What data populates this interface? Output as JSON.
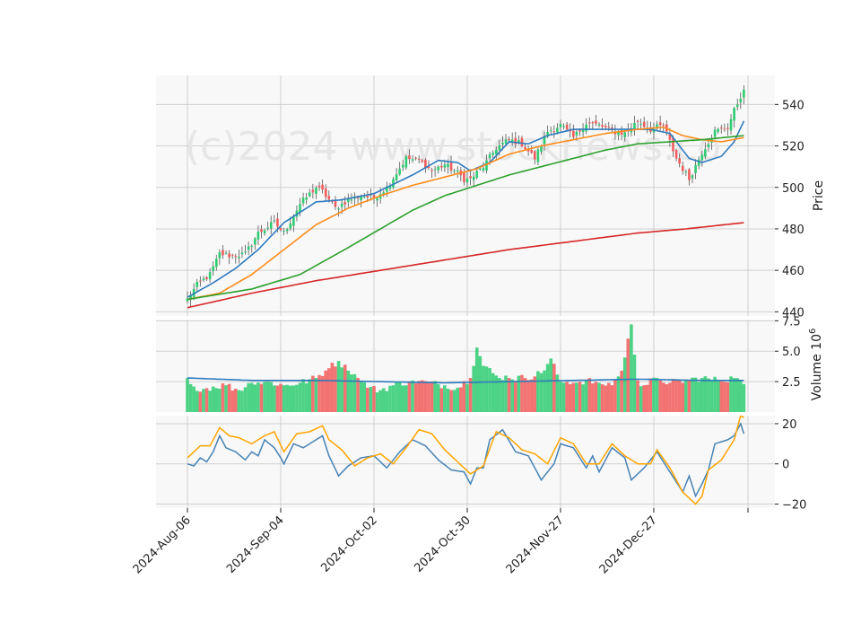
{
  "watermark": "(c)2024 www.stocknews.co",
  "colors": {
    "up": "#2ecc71",
    "down": "#f25c5c",
    "grid": "#d0d0d0",
    "panel_bg": "#f8f8f8",
    "ma_fast": "#2e7bbf",
    "ma_med": "#ff8c1a",
    "ma_slow": "#2ca02c",
    "ma_long": "#d62728",
    "vol_ma": "#2e7bbf",
    "osc_fast": "#4682b4",
    "osc_slow": "#ffa500"
  },
  "chart_data": [
    {
      "type": "candlestick",
      "panel": "price",
      "ylabel": "Price",
      "ylim": [
        438,
        554
      ],
      "yticks": [
        440,
        460,
        480,
        500,
        520,
        540
      ],
      "x_ticks": [
        "2024-Aug-06",
        "2024-Sep-04",
        "2024-Oct-02",
        "2024-Oct-30",
        "2024-Nov-27",
        "2024-Dec-27"
      ],
      "x_tick_index": [
        0,
        29,
        58,
        87,
        116,
        145
      ],
      "n_bars": 174,
      "grid": true,
      "price_anchors": [
        [
          0,
          446
        ],
        [
          3,
          453
        ],
        [
          7,
          458
        ],
        [
          10,
          468
        ],
        [
          14,
          467
        ],
        [
          18,
          468
        ],
        [
          22,
          478
        ],
        [
          27,
          483
        ],
        [
          30,
          478
        ],
        [
          35,
          492
        ],
        [
          40,
          500
        ],
        [
          42,
          498
        ],
        [
          46,
          490
        ],
        [
          50,
          494
        ],
        [
          54,
          496
        ],
        [
          58,
          495
        ],
        [
          62,
          500
        ],
        [
          68,
          514
        ],
        [
          72,
          513
        ],
        [
          76,
          508
        ],
        [
          80,
          511
        ],
        [
          84,
          507
        ],
        [
          86,
          504
        ],
        [
          88,
          504
        ],
        [
          92,
          510
        ],
        [
          96,
          519
        ],
        [
          100,
          523
        ],
        [
          104,
          521
        ],
        [
          108,
          514
        ],
        [
          112,
          527
        ],
        [
          116,
          530
        ],
        [
          120,
          524
        ],
        [
          124,
          531
        ],
        [
          128,
          530
        ],
        [
          132,
          527
        ],
        [
          136,
          526
        ],
        [
          140,
          532
        ],
        [
          144,
          528
        ],
        [
          148,
          530
        ],
        [
          152,
          514
        ],
        [
          156,
          504
        ],
        [
          160,
          517
        ],
        [
          164,
          527
        ],
        [
          168,
          529
        ],
        [
          170,
          537
        ],
        [
          172,
          544
        ],
        [
          173,
          546
        ]
      ],
      "ma_series": [
        {
          "name": "ma_fast",
          "anchors": [
            [
              0,
              447
            ],
            [
              8,
              454
            ],
            [
              15,
              461
            ],
            [
              22,
              470
            ],
            [
              30,
              483
            ],
            [
              40,
              493
            ],
            [
              48,
              494
            ],
            [
              58,
              497
            ],
            [
              70,
              506
            ],
            [
              78,
              513
            ],
            [
              84,
              512
            ],
            [
              88,
              508
            ],
            [
              94,
              512
            ],
            [
              100,
              522
            ],
            [
              106,
              521
            ],
            [
              112,
              525
            ],
            [
              120,
              528
            ],
            [
              128,
              528
            ],
            [
              136,
              528
            ],
            [
              144,
              528
            ],
            [
              150,
              526
            ],
            [
              156,
              514
            ],
            [
              160,
              512
            ],
            [
              166,
              515
            ],
            [
              170,
              522
            ],
            [
              173,
              532
            ]
          ]
        },
        {
          "name": "ma_med",
          "anchors": [
            [
              0,
              446
            ],
            [
              10,
              449
            ],
            [
              20,
              458
            ],
            [
              30,
              470
            ],
            [
              40,
              482
            ],
            [
              50,
              490
            ],
            [
              60,
              496
            ],
            [
              70,
              501
            ],
            [
              80,
              505
            ],
            [
              90,
              509
            ],
            [
              100,
              516
            ],
            [
              110,
              520
            ],
            [
              120,
              523
            ],
            [
              130,
              526
            ],
            [
              140,
              528
            ],
            [
              148,
              529
            ],
            [
              154,
              525
            ],
            [
              160,
              523
            ],
            [
              166,
              522
            ],
            [
              173,
              524
            ]
          ]
        },
        {
          "name": "ma_slow",
          "anchors": [
            [
              0,
              446
            ],
            [
              20,
              451
            ],
            [
              35,
              458
            ],
            [
              50,
              471
            ],
            [
              60,
              480
            ],
            [
              70,
              489
            ],
            [
              80,
              496
            ],
            [
              90,
              501
            ],
            [
              100,
              506
            ],
            [
              110,
              510
            ],
            [
              120,
              514
            ],
            [
              130,
              518
            ],
            [
              140,
              521
            ],
            [
              150,
              522
            ],
            [
              160,
              523
            ],
            [
              173,
              525
            ]
          ]
        },
        {
          "name": "ma_long",
          "anchors": [
            [
              0,
              442
            ],
            [
              20,
              449
            ],
            [
              40,
              455
            ],
            [
              60,
              460
            ],
            [
              80,
              465
            ],
            [
              100,
              470
            ],
            [
              120,
              474
            ],
            [
              140,
              478
            ],
            [
              155,
              480
            ],
            [
              173,
              483
            ]
          ]
        }
      ]
    },
    {
      "type": "bar",
      "panel": "volume",
      "ylabel": "Volume  10",
      "ylabel_exp": "6",
      "ylim": [
        0,
        7.6
      ],
      "yticks": [
        2.5,
        5.0,
        7.5
      ],
      "ytick_labels": [
        "2.5",
        "5.0",
        "7.5"
      ],
      "volume_anchors": [
        [
          0,
          2.8
        ],
        [
          1,
          2.3
        ],
        [
          2,
          2.1
        ],
        [
          5,
          1.9
        ],
        [
          8,
          2.1
        ],
        [
          12,
          2.2
        ],
        [
          16,
          1.8
        ],
        [
          20,
          2.4
        ],
        [
          25,
          2.5
        ],
        [
          30,
          2.2
        ],
        [
          35,
          2.4
        ],
        [
          40,
          2.8
        ],
        [
          44,
          3.6
        ],
        [
          47,
          4.2
        ],
        [
          50,
          3.4
        ],
        [
          53,
          2.8
        ],
        [
          56,
          2.0
        ],
        [
          60,
          1.8
        ],
        [
          64,
          2.2
        ],
        [
          70,
          2.6
        ],
        [
          75,
          2.4
        ],
        [
          80,
          2.2
        ],
        [
          84,
          2.0
        ],
        [
          88,
          2.8
        ],
        [
          90,
          5.3
        ],
        [
          92,
          3.8
        ],
        [
          96,
          3.0
        ],
        [
          100,
          2.8
        ],
        [
          105,
          2.8
        ],
        [
          110,
          3.2
        ],
        [
          113,
          4.4
        ],
        [
          116,
          2.5
        ],
        [
          120,
          2.4
        ],
        [
          124,
          2.6
        ],
        [
          128,
          2.4
        ],
        [
          132,
          2.2
        ],
        [
          135,
          3.4
        ],
        [
          138,
          7.2
        ],
        [
          140,
          2.6
        ],
        [
          142,
          2.2
        ],
        [
          146,
          2.8
        ],
        [
          150,
          2.4
        ],
        [
          155,
          2.6
        ],
        [
          160,
          2.8
        ],
        [
          165,
          2.6
        ],
        [
          170,
          2.8
        ],
        [
          173,
          2.3
        ]
      ],
      "vol_ma_anchors": [
        [
          0,
          2.8
        ],
        [
          20,
          2.6
        ],
        [
          40,
          2.6
        ],
        [
          60,
          2.5
        ],
        [
          80,
          2.4
        ],
        [
          100,
          2.5
        ],
        [
          120,
          2.6
        ],
        [
          140,
          2.7
        ],
        [
          160,
          2.6
        ],
        [
          173,
          2.6
        ]
      ]
    },
    {
      "type": "line",
      "panel": "oscillator",
      "ylim": [
        -22,
        24
      ],
      "yticks": [
        -20,
        0,
        20
      ],
      "ytick_labels": [
        "−20",
        "0",
        "20"
      ],
      "series": [
        {
          "name": "osc_fast",
          "anchors": [
            [
              0,
              0
            ],
            [
              2,
              -1
            ],
            [
              4,
              3
            ],
            [
              6,
              1
            ],
            [
              8,
              6
            ],
            [
              10,
              14
            ],
            [
              12,
              8
            ],
            [
              15,
              6
            ],
            [
              18,
              2
            ],
            [
              20,
              6
            ],
            [
              22,
              4
            ],
            [
              24,
              12
            ],
            [
              27,
              8
            ],
            [
              29,
              3
            ],
            [
              30,
              0
            ],
            [
              33,
              10
            ],
            [
              36,
              8
            ],
            [
              40,
              12
            ],
            [
              42,
              14
            ],
            [
              44,
              4
            ],
            [
              47,
              -6
            ],
            [
              50,
              -1
            ],
            [
              54,
              3
            ],
            [
              58,
              4
            ],
            [
              62,
              -2
            ],
            [
              66,
              6
            ],
            [
              70,
              12
            ],
            [
              74,
              9
            ],
            [
              78,
              2
            ],
            [
              82,
              -3
            ],
            [
              86,
              -4
            ],
            [
              88,
              -10
            ],
            [
              90,
              -2
            ],
            [
              92,
              -2
            ],
            [
              94,
              12
            ],
            [
              98,
              17
            ],
            [
              102,
              6
            ],
            [
              106,
              4
            ],
            [
              110,
              -8
            ],
            [
              114,
              0
            ],
            [
              116,
              10
            ],
            [
              120,
              8
            ],
            [
              124,
              -2
            ],
            [
              126,
              4
            ],
            [
              128,
              -4
            ],
            [
              132,
              8
            ],
            [
              136,
              3
            ],
            [
              138,
              -8
            ],
            [
              142,
              -2
            ],
            [
              146,
              6
            ],
            [
              150,
              -4
            ],
            [
              154,
              -14
            ],
            [
              156,
              -6
            ],
            [
              158,
              -16
            ],
            [
              160,
              -10
            ],
            [
              162,
              -3
            ],
            [
              164,
              10
            ],
            [
              168,
              12
            ],
            [
              170,
              14
            ],
            [
              172,
              20
            ],
            [
              173,
              15
            ]
          ]
        },
        {
          "name": "osc_slow",
          "anchors": [
            [
              0,
              3
            ],
            [
              4,
              9
            ],
            [
              7,
              9
            ],
            [
              10,
              18
            ],
            [
              13,
              14
            ],
            [
              16,
              13
            ],
            [
              20,
              10
            ],
            [
              24,
              14
            ],
            [
              27,
              16
            ],
            [
              30,
              6
            ],
            [
              34,
              15
            ],
            [
              38,
              16
            ],
            [
              42,
              19
            ],
            [
              44,
              12
            ],
            [
              48,
              7
            ],
            [
              52,
              -1
            ],
            [
              56,
              3
            ],
            [
              60,
              5
            ],
            [
              64,
              0
            ],
            [
              68,
              8
            ],
            [
              72,
              17
            ],
            [
              76,
              15
            ],
            [
              80,
              7
            ],
            [
              84,
              1
            ],
            [
              88,
              -5
            ],
            [
              92,
              -1
            ],
            [
              96,
              16
            ],
            [
              100,
              13
            ],
            [
              104,
              7
            ],
            [
              108,
              5
            ],
            [
              112,
              0
            ],
            [
              116,
              13
            ],
            [
              120,
              10
            ],
            [
              124,
              0
            ],
            [
              128,
              0
            ],
            [
              132,
              10
            ],
            [
              136,
              4
            ],
            [
              140,
              0
            ],
            [
              144,
              0
            ],
            [
              146,
              7
            ],
            [
              150,
              -2
            ],
            [
              154,
              -14
            ],
            [
              158,
              -20
            ],
            [
              160,
              -16
            ],
            [
              162,
              -3
            ],
            [
              166,
              2
            ],
            [
              170,
              12
            ],
            [
              172,
              24
            ],
            [
              173,
              23
            ]
          ]
        }
      ]
    }
  ]
}
